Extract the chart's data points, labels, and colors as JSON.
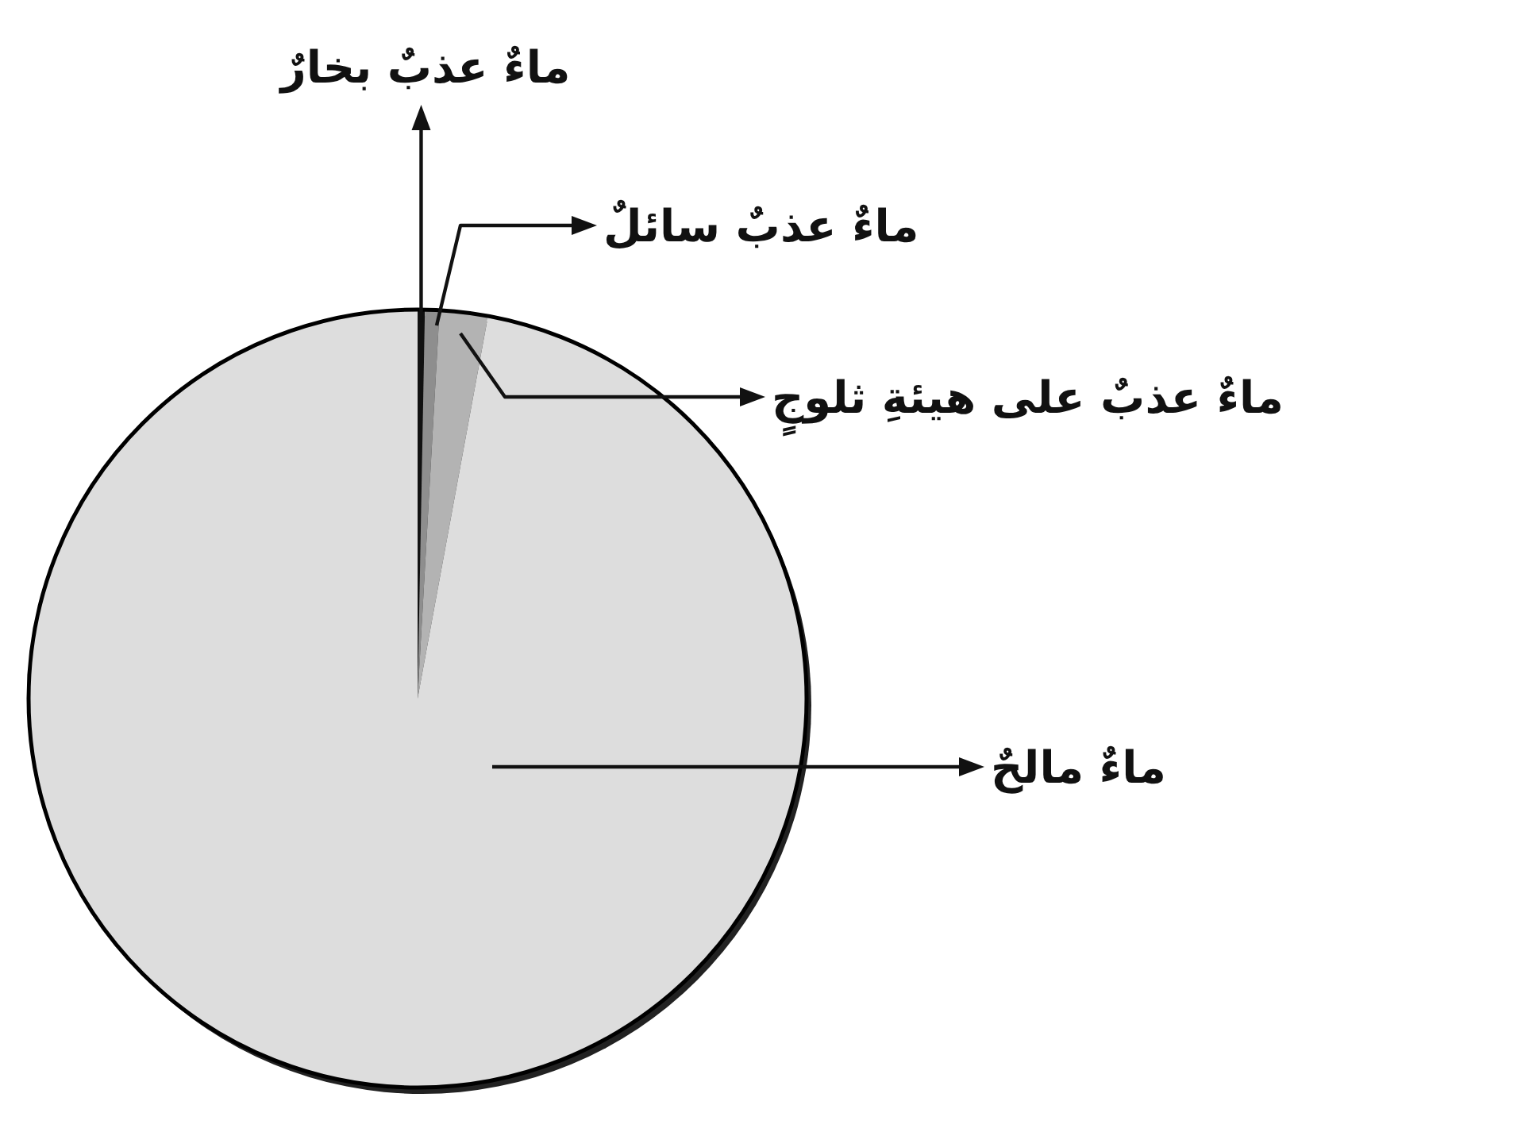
{
  "chart_data": {
    "type": "pie",
    "categories": [
      "ماءٌ عذبٌ بخارٌ",
      "ماءٌ عذبٌ سائلٌ",
      "ماءٌ عذبٌ على هيئةِ ثلوجٍ",
      "ماءٌ مالحٌ"
    ],
    "values": [
      0.3,
      0.6,
      2.0,
      97.1
    ],
    "colors": [
      "#111111",
      "#8e8e8e",
      "#b3b3b3",
      "#dddddd"
    ]
  }
}
